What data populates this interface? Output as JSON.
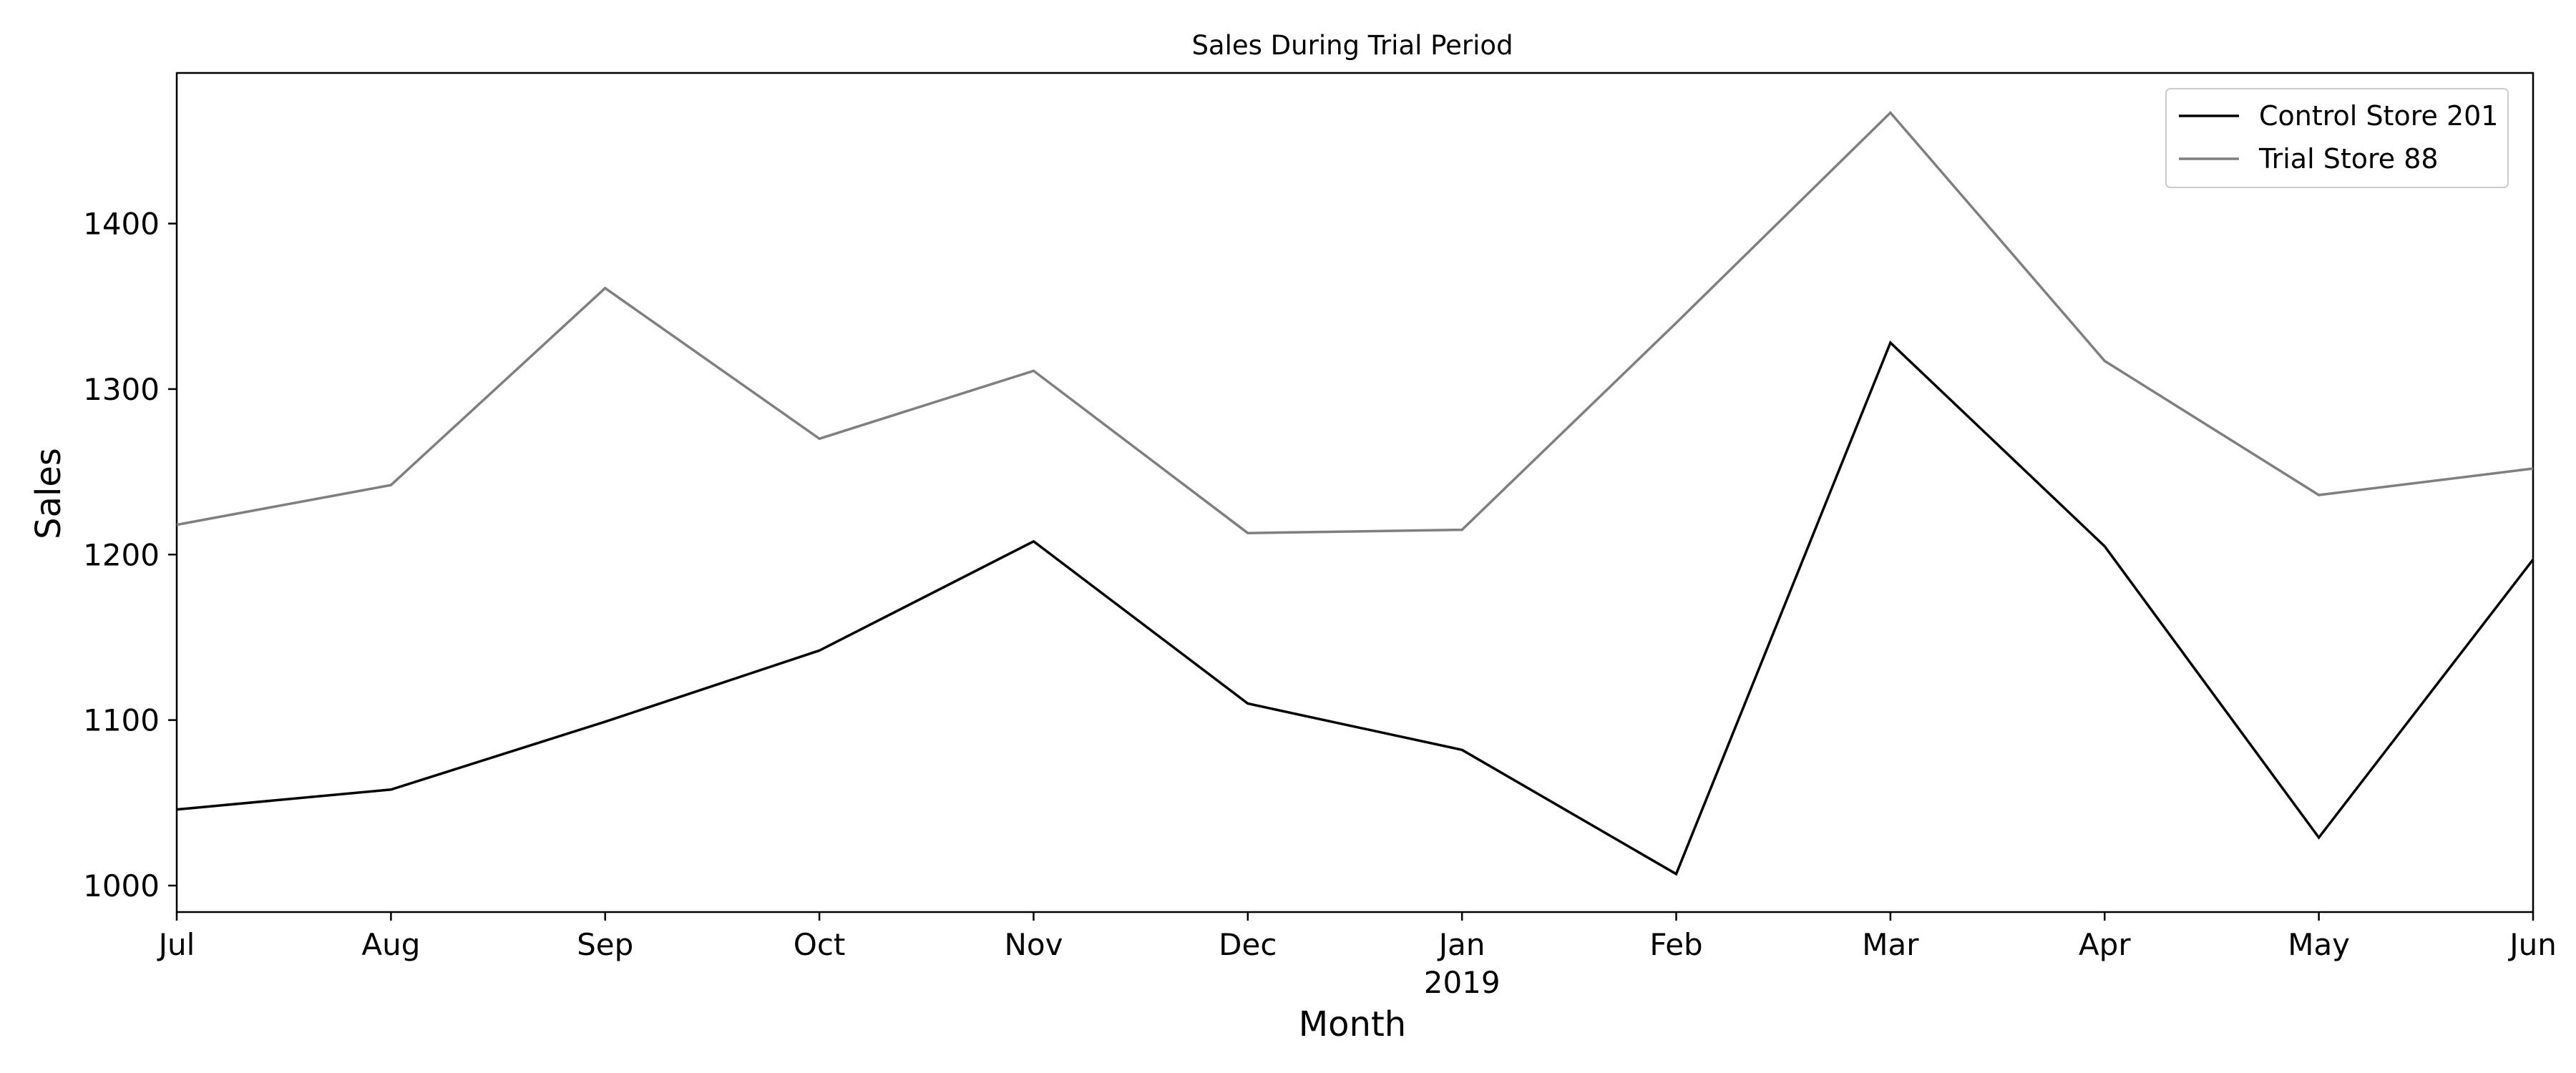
{
  "chart_data": {
    "type": "line",
    "title": "Sales During Trial Period",
    "xlabel": "Month",
    "ylabel": "Sales",
    "categories": [
      "Jul",
      "Aug",
      "Sep",
      "Oct",
      "Nov",
      "Dec",
      "Jan",
      "Feb",
      "Mar",
      "Apr",
      "May",
      "Jun"
    ],
    "x_year_label": {
      "index": 6,
      "text": "2019"
    },
    "yticks": [
      1000,
      1100,
      1200,
      1300,
      1400
    ],
    "ylim": [
      984,
      1491
    ],
    "grid": false,
    "legend": {
      "position": "top-right"
    },
    "series": [
      {
        "name": "Control Store 201",
        "color": "#000000",
        "values": [
          1046,
          1058,
          1099,
          1142,
          1208,
          1110,
          1082,
          1007,
          1328,
          1205,
          1029,
          1197
        ]
      },
      {
        "name": "Trial Store 88",
        "color": "#7f7f7f",
        "values": [
          1218,
          1242,
          1361,
          1270,
          1311,
          1213,
          1215,
          1340,
          1467,
          1317,
          1236,
          1252
        ]
      }
    ]
  }
}
